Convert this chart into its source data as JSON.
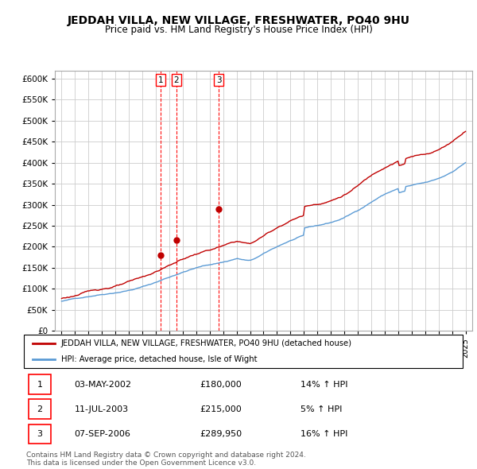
{
  "title": "JEDDAH VILLA, NEW VILLAGE, FRESHWATER, PO40 9HU",
  "subtitle": "Price paid vs. HM Land Registry's House Price Index (HPI)",
  "ylim": [
    0,
    620000
  ],
  "yticks": [
    0,
    50000,
    100000,
    150000,
    200000,
    250000,
    300000,
    350000,
    400000,
    450000,
    500000,
    550000,
    600000
  ],
  "hpi_color": "#5b9bd5",
  "price_color": "#c00000",
  "vertical_line_color": "#ff0000",
  "transactions": [
    {
      "label": "1",
      "date": "03-MAY-2002",
      "x": 2002.34,
      "price": 180000,
      "pct": "14%",
      "direction": "↑"
    },
    {
      "label": "2",
      "date": "11-JUL-2003",
      "x": 2003.53,
      "price": 215000,
      "pct": "5%",
      "direction": "↑"
    },
    {
      "label": "3",
      "date": "07-SEP-2006",
      "x": 2006.68,
      "price": 289950,
      "pct": "16%",
      "direction": "↑"
    }
  ],
  "legend_red_label": "JEDDAH VILLA, NEW VILLAGE, FRESHWATER, PO40 9HU (detached house)",
  "legend_blue_label": "HPI: Average price, detached house, Isle of Wight",
  "footer": "Contains HM Land Registry data © Crown copyright and database right 2024.\nThis data is licensed under the Open Government Licence v3.0.",
  "background_color": "#ffffff",
  "grid_color": "#cccccc"
}
